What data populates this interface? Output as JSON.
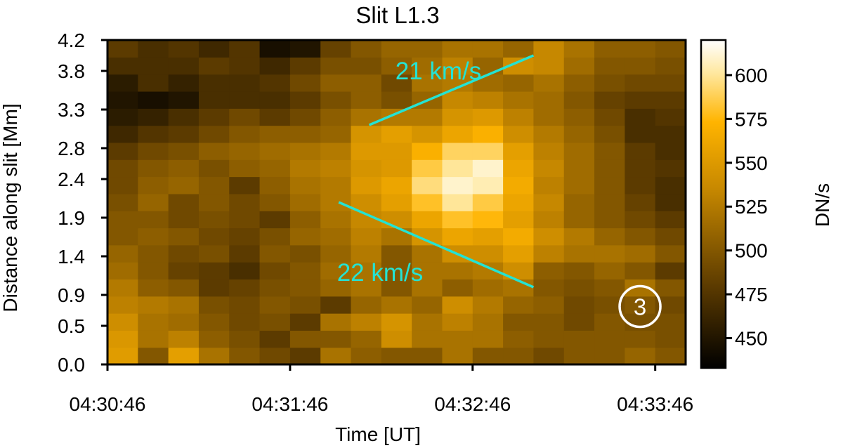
{
  "chart_data": {
    "type": "heatmap",
    "title": "Slit L1.3",
    "xlabel": "Time [UT]",
    "ylabel": "Distance along slit [Mm]",
    "x_ticks": [
      "04:30:46",
      "04:31:46",
      "04:32:46",
      "04:33:46"
    ],
    "y_ticks": [
      "0.0",
      "0.5",
      "0.9",
      "1.4",
      "1.9",
      "2.4",
      "2.8",
      "3.3",
      "3.8",
      "4.2"
    ],
    "xlim": [
      "04:30:46",
      "04:33:56"
    ],
    "ylim": [
      0.0,
      4.2
    ],
    "colorbar": {
      "label": "DN/s",
      "ticks": [
        450,
        475,
        500,
        525,
        550,
        575,
        600
      ],
      "range": [
        433,
        620
      ],
      "colormap": "black-orange-white"
    },
    "grid": false,
    "time_columns": 19,
    "distance_rows": 19,
    "intensity_rows_bottom_to_top": [
      [
        552,
        500,
        555,
        520,
        500,
        490,
        480,
        520,
        505,
        500,
        500,
        520,
        500,
        500,
        490,
        500,
        500,
        510,
        500
      ],
      [
        548,
        520,
        530,
        505,
        495,
        480,
        500,
        500,
        510,
        540,
        520,
        520,
        520,
        505,
        500,
        500,
        500,
        500,
        495
      ],
      [
        540,
        520,
        515,
        500,
        490,
        495,
        480,
        520,
        530,
        545,
        520,
        530,
        520,
        500,
        500,
        490,
        500,
        495,
        495
      ],
      [
        530,
        525,
        520,
        495,
        490,
        500,
        495,
        480,
        510,
        520,
        510,
        540,
        525,
        510,
        505,
        490,
        495,
        500,
        490
      ],
      [
        525,
        505,
        500,
        480,
        485,
        495,
        500,
        510,
        520,
        500,
        520,
        505,
        515,
        520,
        500,
        495,
        500,
        520,
        500
      ],
      [
        515,
        500,
        485,
        480,
        470,
        490,
        500,
        515,
        520,
        500,
        520,
        520,
        525,
        540,
        505,
        500,
        510,
        500,
        480
      ],
      [
        510,
        500,
        490,
        495,
        480,
        500,
        495,
        510,
        525,
        500,
        520,
        540,
        540,
        555,
        530,
        520,
        520,
        515,
        500
      ],
      [
        500,
        505,
        500,
        490,
        485,
        495,
        510,
        515,
        530,
        520,
        545,
        560,
        555,
        565,
        540,
        525,
        510,
        500,
        490
      ],
      [
        500,
        500,
        490,
        495,
        490,
        480,
        505,
        520,
        535,
        540,
        560,
        580,
        575,
        555,
        530,
        510,
        500,
        490,
        480
      ],
      [
        495,
        510,
        490,
        500,
        490,
        500,
        515,
        525,
        540,
        555,
        580,
        600,
        585,
        560,
        535,
        510,
        500,
        485,
        470
      ],
      [
        490,
        505,
        510,
        500,
        480,
        505,
        520,
        525,
        550,
        560,
        595,
        610,
        605,
        565,
        530,
        515,
        500,
        480,
        470
      ],
      [
        490,
        500,
        505,
        495,
        505,
        510,
        525,
        530,
        545,
        550,
        585,
        600,
        610,
        560,
        535,
        515,
        500,
        480,
        475
      ],
      [
        480,
        490,
        495,
        505,
        510,
        515,
        520,
        525,
        550,
        550,
        570,
        590,
        590,
        555,
        530,
        515,
        500,
        480,
        470
      ],
      [
        465,
        475,
        480,
        490,
        500,
        505,
        505,
        510,
        545,
        555,
        545,
        560,
        570,
        540,
        525,
        510,
        495,
        470,
        470
      ],
      [
        455,
        460,
        470,
        480,
        490,
        480,
        490,
        505,
        520,
        525,
        525,
        545,
        550,
        530,
        515,
        505,
        490,
        470,
        475
      ],
      [
        450,
        445,
        450,
        470,
        470,
        470,
        480,
        495,
        505,
        495,
        510,
        535,
        530,
        520,
        515,
        500,
        485,
        480,
        480
      ],
      [
        455,
        470,
        460,
        470,
        470,
        475,
        490,
        505,
        505,
        490,
        520,
        525,
        515,
        510,
        520,
        505,
        495,
        490,
        490
      ],
      [
        470,
        470,
        470,
        480,
        475,
        465,
        480,
        495,
        495,
        505,
        515,
        530,
        510,
        540,
        535,
        515,
        500,
        500,
        495
      ],
      [
        480,
        470,
        475,
        465,
        475,
        445,
        450,
        485,
        500,
        510,
        510,
        520,
        520,
        510,
        535,
        520,
        505,
        505,
        500
      ]
    ],
    "annotations": [
      {
        "text": "21 km/s",
        "from": {
          "t": "04:32:12",
          "d": 3.1
        },
        "to": {
          "t": "04:33:06",
          "d": 4.0
        }
      },
      {
        "text": "22 km/s",
        "from": {
          "t": "04:32:02",
          "d": 2.1
        },
        "to": {
          "t": "04:33:06",
          "d": 1.0
        }
      }
    ],
    "marker": {
      "text": "3",
      "t": "04:33:41",
      "d": 0.75
    }
  },
  "colors": {
    "annotation": "#24e3d3",
    "marker": "#ffffff",
    "axis": "#000000"
  }
}
